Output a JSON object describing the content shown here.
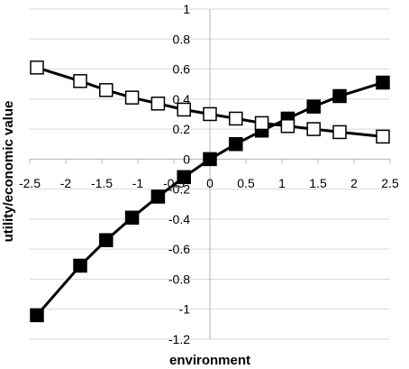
{
  "chart_data": {
    "type": "line",
    "title": "",
    "xlabel": "environment",
    "ylabel": "utility/economic value",
    "xlim": [
      -2.5,
      2.5
    ],
    "ylim": [
      -1.2,
      1
    ],
    "x_ticks": [
      "-2.5",
      "-2",
      "-1.5",
      "-1",
      "-0.5",
      "0",
      "0.5",
      "1",
      "1.5",
      "2",
      "2.5"
    ],
    "y_ticks": [
      "1",
      "0.8",
      "0.6",
      "0.4",
      "0.2",
      "0",
      "-0.2",
      "-0.4",
      "-0.6",
      "-0.8",
      "-1",
      "-1.2"
    ],
    "grid": "horizontal",
    "legend": "none",
    "series": [
      {
        "marker": "filled-square",
        "color": "#000000",
        "x": [
          -2.4,
          -1.8,
          -1.44,
          -1.08,
          -0.72,
          -0.36,
          0,
          0.36,
          0.72,
          1.08,
          1.44,
          1.8,
          2.4
        ],
        "y": [
          -1.04,
          -0.71,
          -0.54,
          -0.39,
          -0.25,
          -0.12,
          0.0,
          0.1,
          0.19,
          0.27,
          0.35,
          0.42,
          0.51
        ]
      },
      {
        "marker": "hollow-square",
        "color": "#000000",
        "x": [
          -2.4,
          -1.8,
          -1.44,
          -1.08,
          -0.72,
          -0.36,
          0,
          0.36,
          0.72,
          1.08,
          1.44,
          1.8,
          2.4
        ],
        "y": [
          0.61,
          0.52,
          0.46,
          0.41,
          0.37,
          0.33,
          0.3,
          0.27,
          0.24,
          0.22,
          0.2,
          0.18,
          0.15
        ]
      }
    ]
  }
}
